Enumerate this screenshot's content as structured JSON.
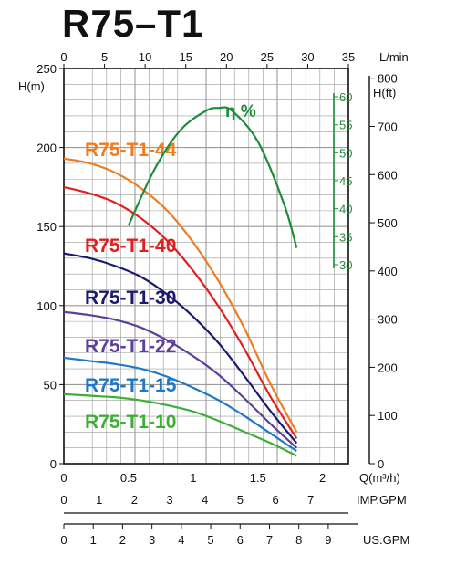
{
  "title": "R75–T1",
  "chart_data": {
    "type": "line",
    "title": "R75–T1",
    "top_axis": {
      "label": "L/min",
      "ticks": [
        0,
        5,
        10,
        15,
        20,
        25,
        30,
        35
      ],
      "range": [
        0,
        35
      ]
    },
    "x_axis": {
      "label": "Q(m³/h)",
      "ticks": [
        "0",
        "0.5",
        "1",
        "1.5",
        "2"
      ],
      "range": [
        0,
        2.2
      ]
    },
    "imp_axis": {
      "label": "IMP.GPM",
      "ticks": [
        0,
        1,
        2,
        3,
        4,
        5,
        6,
        7
      ]
    },
    "us_axis": {
      "label": "US.GPM",
      "ticks": [
        0,
        1,
        2,
        3,
        4,
        5,
        6,
        7,
        8,
        9
      ]
    },
    "y_left": {
      "label": "H(m)",
      "ticks": [
        0,
        50,
        100,
        150,
        200,
        250
      ],
      "range": [
        0,
        250
      ]
    },
    "y_right": {
      "label": "H(ft)",
      "ticks": [
        0,
        100,
        200,
        300,
        400,
        500,
        600,
        700,
        800
      ]
    },
    "y_eff": {
      "label": "η %",
      "ticks": [
        30,
        35,
        40,
        45,
        50,
        55,
        60
      ],
      "range": [
        28,
        62
      ]
    },
    "series": [
      {
        "name": "R75-T1-44",
        "color": "#f07c1e",
        "x": [
          0,
          0.2,
          0.4,
          0.6,
          0.8,
          1.0,
          1.2,
          1.4,
          1.6,
          1.8
        ],
        "y": [
          193,
          190,
          184,
          174,
          160,
          140,
          115,
          85,
          50,
          20
        ]
      },
      {
        "name": "R75-T1-40",
        "color": "#e02020",
        "x": [
          0,
          0.2,
          0.4,
          0.6,
          0.8,
          1.0,
          1.2,
          1.4,
          1.6,
          1.8
        ],
        "y": [
          175,
          171,
          165,
          155,
          141,
          122,
          99,
          72,
          42,
          16
        ]
      },
      {
        "name": "R75-T1-30",
        "color": "#1a1a6e",
        "x": [
          0,
          0.2,
          0.4,
          0.6,
          0.8,
          1.0,
          1.2,
          1.4,
          1.6,
          1.8
        ],
        "y": [
          133,
          130,
          125,
          118,
          107,
          93,
          76,
          55,
          33,
          13
        ]
      },
      {
        "name": "R75-T1-22",
        "color": "#5b3f9a",
        "x": [
          0,
          0.2,
          0.4,
          0.6,
          0.8,
          1.0,
          1.2,
          1.4,
          1.6,
          1.8
        ],
        "y": [
          96,
          94,
          91,
          86,
          78,
          68,
          56,
          41,
          25,
          10
        ]
      },
      {
        "name": "R75-T1-15",
        "color": "#1f77c8",
        "x": [
          0,
          0.2,
          0.4,
          0.6,
          0.8,
          1.0,
          1.2,
          1.4,
          1.6,
          1.8
        ],
        "y": [
          67,
          65,
          63,
          60,
          55,
          48,
          40,
          30,
          19,
          8
        ]
      },
      {
        "name": "R75-T1-10",
        "color": "#3fae35",
        "x": [
          0,
          0.2,
          0.4,
          0.6,
          0.8,
          1.0,
          1.2,
          1.4,
          1.6,
          1.8
        ],
        "y": [
          44,
          43,
          42,
          40,
          37,
          33,
          27,
          20,
          13,
          5
        ]
      }
    ],
    "efficiency": {
      "name": "η %",
      "color": "#1e8c3a",
      "x": [
        0.5,
        0.7,
        0.9,
        1.1,
        1.2,
        1.3,
        1.5,
        1.7,
        1.8
      ],
      "y": [
        37,
        47,
        54,
        57.5,
        58,
        57.5,
        52,
        41,
        33
      ]
    },
    "grid": true
  },
  "colors": {
    "grid": "#9a9a9a",
    "axis": "#111111",
    "eff_axis": "#1e8c3a"
  }
}
